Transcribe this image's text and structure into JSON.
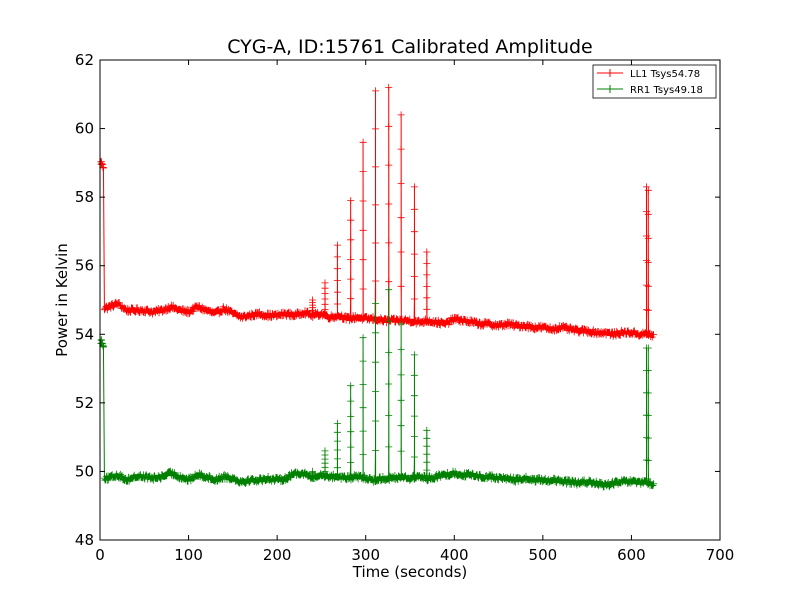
{
  "chart_data": {
    "type": "line",
    "title": "CYG-A, ID:15761 Calibrated Amplitude",
    "xlabel": "Time (seconds)",
    "ylabel": "Power in Kelvin",
    "xlim": [
      0,
      700
    ],
    "ylim": [
      48,
      62
    ],
    "xticks": [
      0,
      100,
      200,
      300,
      400,
      500,
      600,
      700
    ],
    "yticks": [
      48,
      50,
      52,
      54,
      56,
      58,
      60,
      62
    ],
    "grid": false,
    "legend_position": "top-right",
    "marker": "plus",
    "series": [
      {
        "name": "LL1 Tsys54.78",
        "color": "#ff0000",
        "baseline": [
          [
            5,
            54.75
          ],
          [
            10,
            54.8
          ],
          [
            20,
            54.9
          ],
          [
            30,
            54.7
          ],
          [
            40,
            54.7
          ],
          [
            50,
            54.7
          ],
          [
            60,
            54.65
          ],
          [
            70,
            54.7
          ],
          [
            80,
            54.8
          ],
          [
            90,
            54.7
          ],
          [
            100,
            54.65
          ],
          [
            110,
            54.8
          ],
          [
            120,
            54.7
          ],
          [
            130,
            54.6
          ],
          [
            140,
            54.75
          ],
          [
            150,
            54.6
          ],
          [
            160,
            54.5
          ],
          [
            170,
            54.55
          ],
          [
            180,
            54.6
          ],
          [
            190,
            54.55
          ],
          [
            200,
            54.55
          ],
          [
            210,
            54.6
          ],
          [
            220,
            54.55
          ],
          [
            230,
            54.65
          ],
          [
            240,
            54.55
          ],
          [
            250,
            54.6
          ],
          [
            260,
            54.5
          ],
          [
            270,
            54.55
          ],
          [
            280,
            54.45
          ],
          [
            290,
            54.5
          ],
          [
            300,
            54.45
          ],
          [
            310,
            54.45
          ],
          [
            320,
            54.4
          ],
          [
            330,
            54.4
          ],
          [
            340,
            54.4
          ],
          [
            350,
            54.4
          ],
          [
            360,
            54.35
          ],
          [
            370,
            54.4
          ],
          [
            380,
            54.35
          ],
          [
            390,
            54.3
          ],
          [
            400,
            54.45
          ],
          [
            410,
            54.4
          ],
          [
            420,
            54.35
          ],
          [
            430,
            54.3
          ],
          [
            440,
            54.3
          ],
          [
            450,
            54.25
          ],
          [
            460,
            54.3
          ],
          [
            470,
            54.25
          ],
          [
            480,
            54.25
          ],
          [
            490,
            54.2
          ],
          [
            500,
            54.2
          ],
          [
            510,
            54.15
          ],
          [
            520,
            54.2
          ],
          [
            530,
            54.15
          ],
          [
            540,
            54.1
          ],
          [
            550,
            54.1
          ],
          [
            560,
            54.05
          ],
          [
            570,
            54.05
          ],
          [
            580,
            54.0
          ],
          [
            590,
            54.05
          ],
          [
            600,
            54.05
          ],
          [
            610,
            54.0
          ],
          [
            615,
            54.0
          ],
          [
            620,
            54.0
          ],
          [
            625,
            53.95
          ]
        ],
        "spikes": [
          [
            1,
            59.0
          ],
          [
            3,
            58.9
          ],
          [
            240,
            55.0
          ],
          [
            254,
            55.5
          ],
          [
            268,
            56.6
          ],
          [
            283,
            57.9
          ],
          [
            297,
            59.6
          ],
          [
            311,
            61.1
          ],
          [
            326,
            61.2
          ],
          [
            340,
            60.4
          ],
          [
            355,
            58.3
          ],
          [
            369,
            56.4
          ],
          [
            617,
            58.3
          ],
          [
            619,
            58.2
          ]
        ]
      },
      {
        "name": "RR1 Tsys49.18",
        "color": "#008000",
        "baseline": [
          [
            5,
            49.8
          ],
          [
            10,
            49.8
          ],
          [
            20,
            49.9
          ],
          [
            30,
            49.75
          ],
          [
            40,
            49.85
          ],
          [
            50,
            49.85
          ],
          [
            60,
            49.8
          ],
          [
            70,
            49.85
          ],
          [
            80,
            49.95
          ],
          [
            90,
            49.85
          ],
          [
            100,
            49.75
          ],
          [
            110,
            49.9
          ],
          [
            120,
            49.85
          ],
          [
            130,
            49.75
          ],
          [
            140,
            49.85
          ],
          [
            150,
            49.8
          ],
          [
            160,
            49.7
          ],
          [
            170,
            49.75
          ],
          [
            180,
            49.75
          ],
          [
            190,
            49.8
          ],
          [
            200,
            49.75
          ],
          [
            210,
            49.8
          ],
          [
            220,
            49.95
          ],
          [
            230,
            49.95
          ],
          [
            240,
            49.8
          ],
          [
            250,
            49.9
          ],
          [
            260,
            49.85
          ],
          [
            270,
            49.85
          ],
          [
            280,
            49.8
          ],
          [
            290,
            49.85
          ],
          [
            300,
            49.8
          ],
          [
            310,
            49.75
          ],
          [
            320,
            49.8
          ],
          [
            330,
            49.8
          ],
          [
            340,
            49.85
          ],
          [
            350,
            49.8
          ],
          [
            360,
            49.85
          ],
          [
            370,
            49.8
          ],
          [
            380,
            49.85
          ],
          [
            390,
            49.9
          ],
          [
            400,
            49.95
          ],
          [
            410,
            49.9
          ],
          [
            420,
            49.9
          ],
          [
            430,
            49.85
          ],
          [
            440,
            49.85
          ],
          [
            450,
            49.8
          ],
          [
            460,
            49.8
          ],
          [
            470,
            49.75
          ],
          [
            480,
            49.8
          ],
          [
            490,
            49.75
          ],
          [
            500,
            49.75
          ],
          [
            510,
            49.75
          ],
          [
            520,
            49.7
          ],
          [
            530,
            49.7
          ],
          [
            540,
            49.65
          ],
          [
            550,
            49.7
          ],
          [
            560,
            49.65
          ],
          [
            570,
            49.6
          ],
          [
            580,
            49.65
          ],
          [
            590,
            49.7
          ],
          [
            600,
            49.7
          ],
          [
            610,
            49.65
          ],
          [
            615,
            49.7
          ],
          [
            620,
            49.65
          ],
          [
            625,
            49.6
          ]
        ],
        "spikes": [
          [
            1,
            53.8
          ],
          [
            3,
            53.7
          ],
          [
            240,
            50.0
          ],
          [
            254,
            50.6
          ],
          [
            268,
            51.4
          ],
          [
            283,
            52.5
          ],
          [
            297,
            53.9
          ],
          [
            311,
            54.9
          ],
          [
            326,
            55.3
          ],
          [
            340,
            54.3
          ],
          [
            355,
            53.4
          ],
          [
            369,
            51.2
          ],
          [
            617,
            53.6
          ],
          [
            619,
            53.6
          ]
        ]
      }
    ]
  }
}
